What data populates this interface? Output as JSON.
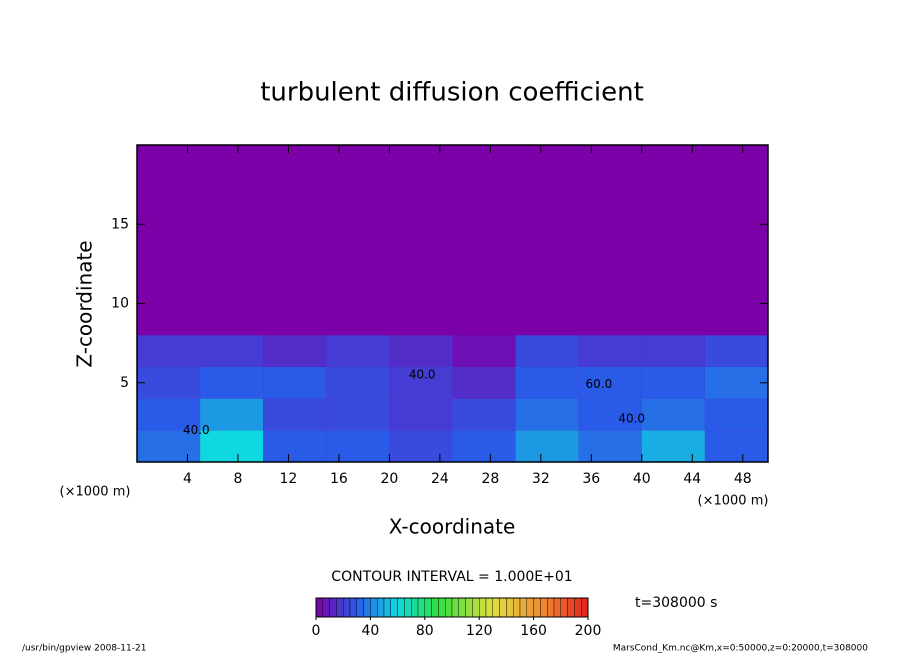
{
  "chart_data": {
    "type": "heatmap",
    "title": "turbulent diffusion coefficient",
    "xlabel": "X-coordinate",
    "ylabel": "Z-coordinate",
    "xlabel_unit": "(×1000 m)",
    "ylabel_unit": "(×1000 m)",
    "xlim": [
      0,
      50
    ],
    "ylim": [
      0,
      20
    ],
    "xticks": [
      4,
      8,
      12,
      16,
      20,
      24,
      28,
      32,
      36,
      40,
      44,
      48
    ],
    "yticks": [
      5,
      10,
      15
    ],
    "x_edges": [
      0,
      5,
      10,
      15,
      20,
      25,
      30,
      35,
      40,
      45,
      50
    ],
    "z_edges": [
      0,
      2,
      4,
      6,
      8,
      10,
      12,
      14,
      16,
      18,
      20
    ],
    "values": [
      [
        35,
        60,
        30,
        30,
        25,
        30,
        45,
        35,
        50,
        30
      ],
      [
        30,
        45,
        25,
        25,
        20,
        25,
        35,
        30,
        35,
        30
      ],
      [
        25,
        30,
        30,
        25,
        20,
        15,
        30,
        30,
        30,
        35
      ],
      [
        20,
        20,
        15,
        20,
        15,
        5,
        25,
        20,
        20,
        25
      ],
      [
        0,
        0,
        0,
        0,
        0,
        0,
        0,
        0,
        0,
        0
      ],
      [
        0,
        0,
        0,
        0,
        0,
        0,
        0,
        0,
        0,
        0
      ],
      [
        0,
        0,
        0,
        0,
        0,
        0,
        0,
        0,
        0,
        0
      ],
      [
        0,
        0,
        0,
        0,
        0,
        0,
        0,
        0,
        0,
        0
      ],
      [
        0,
        0,
        0,
        0,
        0,
        0,
        0,
        0,
        0,
        0
      ],
      [
        0,
        0,
        0,
        0,
        0,
        0,
        0,
        0,
        0,
        0
      ]
    ],
    "contour_labels": [
      {
        "x": 4.7,
        "z": 2.0,
        "value": 40,
        "label": "40.0"
      },
      {
        "x": 39.2,
        "z": 2.7,
        "value": 40,
        "label": "40.0"
      },
      {
        "x": 36.6,
        "z": 4.9,
        "value": 60,
        "label": "60.0"
      },
      {
        "x": 22.6,
        "z": 5.5,
        "value": 40,
        "label": "40.0"
      }
    ],
    "colorscale": [
      {
        "value": 0,
        "color": "#7b00a8"
      },
      {
        "value": 30,
        "color": "#2a5ae8"
      },
      {
        "value": 60,
        "color": "#10d8e0"
      },
      {
        "value": 90,
        "color": "#30e040"
      },
      {
        "value": 130,
        "color": "#e0e040"
      },
      {
        "value": 170,
        "color": "#f08030"
      },
      {
        "value": 200,
        "color": "#e02020"
      }
    ],
    "colorbar_lim": [
      0,
      200
    ],
    "colorbar_ticks": [
      0,
      40,
      80,
      120,
      160,
      200
    ],
    "contour_interval_text": "CONTOUR INTERVAL = 1.000E+01",
    "time_text": "t=308000 s",
    "footer_left": "/usr/bin/gpview  2008-11-21",
    "footer_right": "MarsCond_Km.nc@Km,x=0:50000,z=0:20000,t=308000"
  }
}
